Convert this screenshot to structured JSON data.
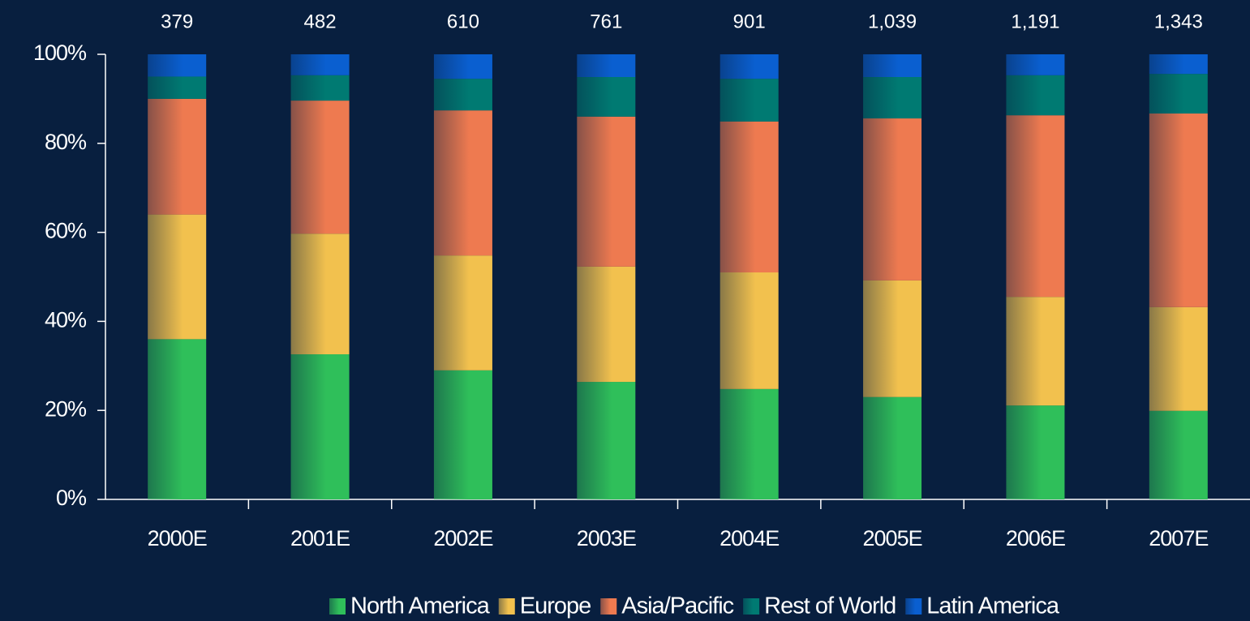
{
  "chart_data": {
    "type": "stacked_bar_100",
    "categories": [
      "2000E",
      "2001E",
      "2002E",
      "2003E",
      "2004E",
      "2005E",
      "2006E",
      "2007E"
    ],
    "series": [
      {
        "name": "North America",
        "color": "#2fbf5a",
        "values": [
          36,
          32.6,
          29,
          26.4,
          24.8,
          23,
          21.1,
          19.9
        ]
      },
      {
        "name": "Europe",
        "color": "#f2c14e",
        "values": [
          28,
          27.1,
          25.8,
          25.9,
          26.2,
          26.2,
          24.4,
          23.3
        ]
      },
      {
        "name": "Asia/Pacific",
        "color": "#ee7a50",
        "values": [
          26,
          29.9,
          32.6,
          33.7,
          33.9,
          36.4,
          40.8,
          43.5
        ]
      },
      {
        "name": "Rest of World",
        "color": "#007a72",
        "values": [
          5,
          5.7,
          7.1,
          8.9,
          9.6,
          9.3,
          9,
          8.9
        ]
      },
      {
        "name": "Latin America",
        "color": "#0a5fd0",
        "values": [
          5,
          4.7,
          5.5,
          5.1,
          5.5,
          5.1,
          4.7,
          4.4
        ]
      }
    ],
    "totals": {
      "values": [
        379,
        482,
        610,
        761,
        901,
        1039,
        1191,
        1343
      ],
      "value_labels": [
        "379",
        "482",
        "610",
        "761",
        "901",
        "1,039",
        "1,191",
        "1,343"
      ]
    },
    "ylim": [
      0,
      100
    ],
    "yticks": [
      {
        "value": 0,
        "label": "0%"
      },
      {
        "value": 20,
        "label": "20%"
      },
      {
        "value": 40,
        "label": "40%"
      },
      {
        "value": 60,
        "label": "60%"
      },
      {
        "value": 80,
        "label": "80%"
      },
      {
        "value": 100,
        "label": "100%"
      }
    ],
    "legend": "bottom"
  }
}
